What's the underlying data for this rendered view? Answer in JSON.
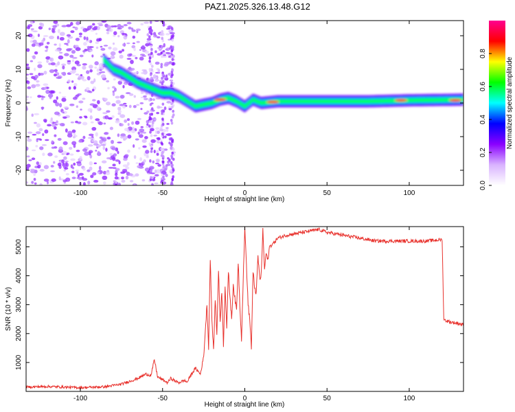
{
  "chart_data": [
    {
      "type": "heatmap",
      "title": "PAZ1.2025.326.13.48.G12",
      "xlabel": "Height of straight line (km)",
      "ylabel": "Frequency (Hz)",
      "xlim": [
        -133,
        133
      ],
      "ylim": [
        -24.5,
        24.5
      ],
      "xticks": [
        -100,
        -50,
        0,
        50,
        100
      ],
      "yticks": [
        -20,
        -10,
        0,
        10,
        20
      ],
      "colorbar": {
        "label": "Normalized spectral amplitude",
        "range": [
          0,
          1
        ],
        "ticks": [
          0.0,
          0.2,
          0.4,
          0.6,
          0.8
        ],
        "colors": [
          "#ffffff",
          "#d9b3ff",
          "#8a00ff",
          "#0000ff",
          "#00ffff",
          "#00ff00",
          "#ffff00",
          "#ff0000",
          "#ff0090"
        ]
      },
      "ridge": {
        "description": "dominant frequency ridge",
        "x": [
          -86,
          -80,
          -75,
          -70,
          -65,
          -60,
          -55,
          -50,
          -45,
          -40,
          -35,
          -30,
          -25,
          -20,
          -15,
          -10,
          -5,
          0,
          5,
          10,
          20,
          30,
          50,
          75,
          100,
          133
        ],
        "y": [
          13,
          10,
          9,
          7.5,
          6,
          5,
          4,
          3,
          3,
          2,
          0.5,
          -1,
          -0.5,
          0,
          1,
          1.5,
          0.5,
          -1,
          1,
          0,
          0.5,
          0.5,
          0.5,
          0.5,
          0.8,
          1
        ]
      }
    },
    {
      "type": "line",
      "xlabel": "Height of straight line (km)",
      "ylabel": "SNR (10 * v/v)",
      "xlim": [
        -133,
        133
      ],
      "ylim": [
        0,
        5700
      ],
      "xticks": [
        -100,
        -50,
        0,
        50,
        100
      ],
      "yticks": [
        1000,
        2000,
        3000,
        4000,
        5000
      ],
      "series": [
        {
          "name": "SNR",
          "color": "#e8312c",
          "x": [
            -133,
            -120,
            -100,
            -85,
            -75,
            -70,
            -65,
            -60,
            -57,
            -55,
            -53,
            -50,
            -47,
            -45,
            -42,
            -40,
            -37,
            -35,
            -33,
            -30,
            -27,
            -25,
            -23,
            -22,
            -21,
            -20,
            -19,
            -18,
            -17,
            -16,
            -15,
            -14,
            -13,
            -12,
            -11,
            -10,
            -9,
            -8,
            -7,
            -6,
            -5,
            -4,
            -3,
            -2,
            -1,
            0,
            1,
            2,
            3,
            4,
            5,
            6,
            7,
            8,
            9,
            10,
            11,
            12,
            13,
            14,
            15,
            17,
            20,
            25,
            30,
            35,
            40,
            45,
            50,
            60,
            70,
            80,
            90,
            100,
            110,
            120,
            121,
            122,
            125,
            130,
            133
          ],
          "y": [
            150,
            170,
            130,
            160,
            250,
            350,
            450,
            600,
            550,
            1100,
            500,
            400,
            300,
            450,
            350,
            300,
            380,
            320,
            550,
            800,
            600,
            1200,
            3000,
            1500,
            4600,
            2500,
            1400,
            3200,
            2000,
            4200,
            2400,
            3500,
            1600,
            3700,
            2200,
            4100,
            3300,
            2500,
            3700,
            3200,
            2800,
            4500,
            3000,
            1800,
            3800,
            5650,
            4400,
            3000,
            2500,
            1500,
            4100,
            3600,
            3400,
            4700,
            3900,
            4000,
            5600,
            4200,
            4800,
            4500,
            5000,
            5100,
            5300,
            5400,
            5450,
            5500,
            5550,
            5600,
            5500,
            5400,
            5300,
            5200,
            5200,
            5200,
            5200,
            5250,
            2500,
            2450,
            2400,
            2350,
            2300
          ]
        }
      ]
    }
  ]
}
